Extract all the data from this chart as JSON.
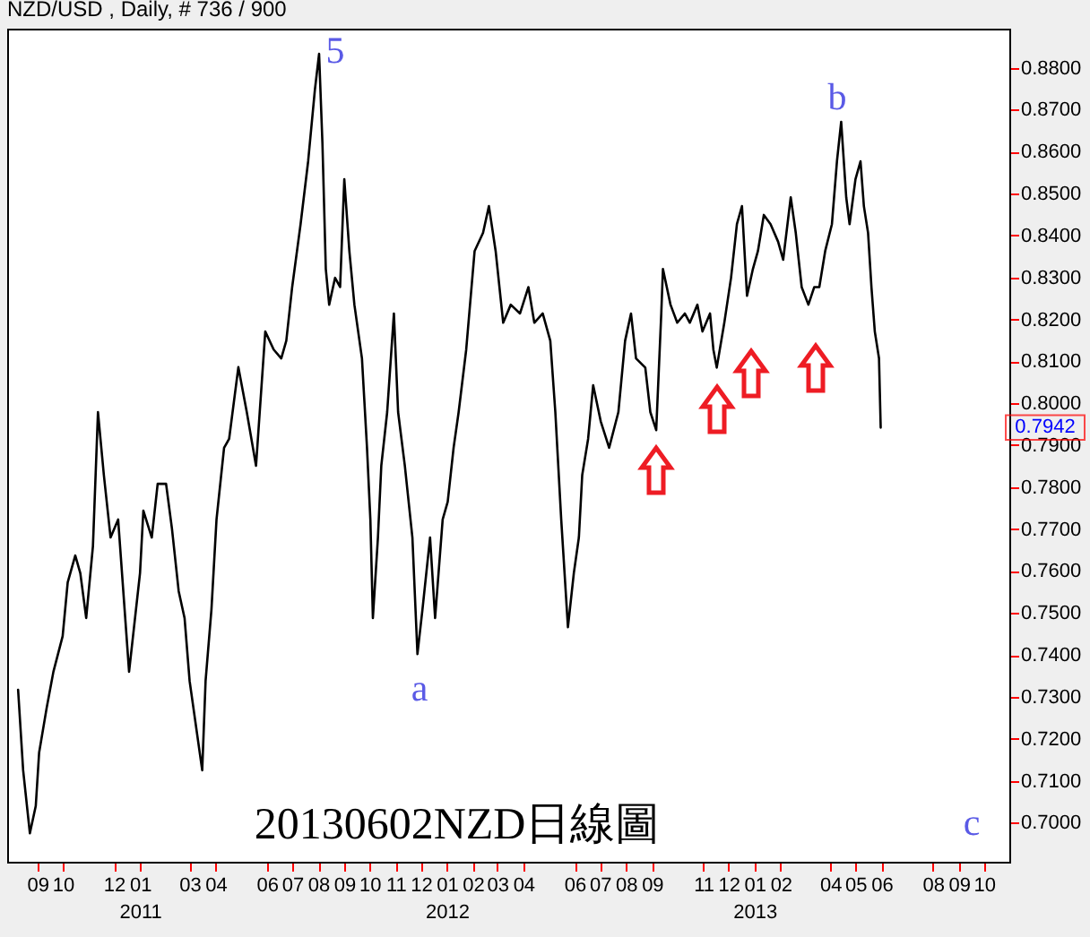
{
  "chart_data": {
    "type": "line",
    "title": "NZD/USD , Daily, # 736 / 900",
    "annotations": [
      "5",
      "b",
      "a",
      "20130602NZD日線圖",
      "c",
      {
        "text": "0.7942",
        "y": 0.7942
      }
    ],
    "x": [
      "2010-08-09",
      "2010-08-15",
      "2010-08-23",
      "2010-08-30",
      "2010-09-03",
      "2010-09-12",
      "2010-09-20",
      "2010-10-01",
      "2010-10-07",
      "2010-10-16",
      "2010-10-22",
      "2010-10-29",
      "2010-11-06",
      "2010-11-12",
      "2010-11-19",
      "2010-11-27",
      "2010-12-06",
      "2010-12-19",
      "2011-01-01",
      "2011-01-05",
      "2011-01-15",
      "2011-01-22",
      "2011-02-01",
      "2011-02-08",
      "2011-02-16",
      "2011-02-23",
      "2011-03-01",
      "2011-03-16",
      "2011-03-20",
      "2011-03-27",
      "2011-04-02",
      "2011-04-11",
      "2011-04-17",
      "2011-04-28",
      "2011-05-08",
      "2011-05-19",
      "2011-05-30",
      "2011-06-09",
      "2011-06-18",
      "2011-06-24",
      "2011-07-01",
      "2011-07-11",
      "2011-07-20",
      "2011-07-28",
      "2011-08-02",
      "2011-08-06",
      "2011-08-10",
      "2011-08-14",
      "2011-08-21",
      "2011-08-27",
      "2011-09-01",
      "2011-09-07",
      "2011-09-13",
      "2011-09-22",
      "2011-09-28",
      "2011-10-02",
      "2011-10-05",
      "2011-10-11",
      "2011-10-15",
      "2011-10-22",
      "2011-10-30",
      "2011-11-04",
      "2011-11-12",
      "2011-11-21",
      "2011-11-27",
      "2011-12-03",
      "2011-12-12",
      "2011-12-18",
      "2011-12-27",
      "2012-01-02",
      "2012-01-09",
      "2012-01-15",
      "2012-01-24",
      "2012-02-03",
      "2012-02-13",
      "2012-02-20",
      "2012-02-28",
      "2012-03-08",
      "2012-03-17",
      "2012-03-28",
      "2012-04-07",
      "2012-04-14",
      "2012-04-24",
      "2012-05-03",
      "2012-05-09",
      "2012-05-16",
      "2012-05-18",
      "2012-05-24",
      "2012-05-31",
      "2012-06-06",
      "2012-06-10",
      "2012-06-17",
      "2012-06-23",
      "2012-07-02",
      "2012-07-12",
      "2012-07-23",
      "2012-07-31",
      "2012-08-07",
      "2012-08-13",
      "2012-08-24",
      "2012-08-30",
      "2012-09-06",
      "2012-09-12",
      "2012-09-14",
      "2012-09-23",
      "2012-10-01",
      "2012-10-10",
      "2012-10-16",
      "2012-10-25",
      "2012-10-31",
      "2012-11-09",
      "2012-11-13",
      "2012-11-17",
      "2012-11-26",
      "2012-12-04",
      "2012-12-11",
      "2012-12-17",
      "2012-12-23",
      "2012-12-30",
      "2013-01-05",
      "2013-01-12",
      "2013-01-20",
      "2013-01-29",
      "2013-02-04",
      "2013-02-13",
      "2013-02-19",
      "2013-02-26",
      "2013-03-06",
      "2013-03-13",
      "2013-03-19",
      "2013-03-26",
      "2013-04-03",
      "2013-04-09",
      "2013-04-14",
      "2013-04-20",
      "2013-04-24",
      "2013-05-01",
      "2013-05-07",
      "2013-05-11",
      "2013-05-16",
      "2013-05-20",
      "2013-05-24",
      "2013-05-29",
      "2013-05-31"
    ],
    "series": [
      {
        "color": "#000000",
        "values": [
          0.7317,
          0.7125,
          0.6975,
          0.704,
          0.7167,
          0.7274,
          0.736,
          0.7445,
          0.7573,
          0.7637,
          0.7595,
          0.7488,
          0.7659,
          0.7979,
          0.7829,
          0.768,
          0.7723,
          0.736,
          0.7595,
          0.7744,
          0.768,
          0.7808,
          0.7808,
          0.7701,
          0.7552,
          0.7488,
          0.7338,
          0.7125,
          0.7338,
          0.7509,
          0.7723,
          0.7894,
          0.7915,
          0.8086,
          0.7979,
          0.7851,
          0.8171,
          0.8128,
          0.8107,
          0.8149,
          0.8277,
          0.8427,
          0.8577,
          0.8747,
          0.8833,
          0.8619,
          0.832,
          0.8235,
          0.8299,
          0.8277,
          0.8534,
          0.8363,
          0.8235,
          0.8107,
          0.7894,
          0.7723,
          0.7488,
          0.768,
          0.7851,
          0.7979,
          0.8214,
          0.7979,
          0.7851,
          0.768,
          0.7402,
          0.7509,
          0.768,
          0.7488,
          0.7723,
          0.7765,
          0.7894,
          0.7979,
          0.8128,
          0.8363,
          0.8406,
          0.847,
          0.8363,
          0.8192,
          0.8235,
          0.8214,
          0.8277,
          0.8192,
          0.8214,
          0.8149,
          0.7979,
          0.7723,
          0.7659,
          0.7466,
          0.7595,
          0.768,
          0.7829,
          0.7915,
          0.8043,
          0.7957,
          0.7894,
          0.7979,
          0.8149,
          0.8214,
          0.8107,
          0.8085,
          0.7979,
          0.7936,
          0.8214,
          0.832,
          0.8235,
          0.8192,
          0.8214,
          0.8192,
          0.8235,
          0.8171,
          0.8214,
          0.8128,
          0.8085,
          0.8192,
          0.8299,
          0.8427,
          0.847,
          0.8256,
          0.832,
          0.8363,
          0.8449,
          0.8427,
          0.8385,
          0.8342,
          0.8491,
          0.8406,
          0.8277,
          0.8235,
          0.8277,
          0.8277,
          0.8363,
          0.8427,
          0.8577,
          0.8671,
          0.8491,
          0.8427,
          0.8534,
          0.8577,
          0.847,
          0.8406,
          0.8277,
          0.8171,
          0.8107,
          0.7942
        ]
      }
    ],
    "xlim": [
      "2010-07-27",
      "2013-10-31"
    ],
    "ylim": [
      0.6907,
      0.8893
    ],
    "xticks": [
      {
        "value": "2010-09",
        "label": "09"
      },
      {
        "value": "2010-10",
        "label": "10"
      },
      {
        "value": "2010-12",
        "label": "12"
      },
      {
        "value": "2011-01",
        "label": "01\n2011"
      },
      {
        "value": "2011-03",
        "label": "03"
      },
      {
        "value": "2011-04",
        "label": "04"
      },
      {
        "value": "2011-06",
        "label": "06"
      },
      {
        "value": "2011-07",
        "label": "07"
      },
      {
        "value": "2011-08",
        "label": "08"
      },
      {
        "value": "2011-09",
        "label": "09"
      },
      {
        "value": "2011-10",
        "label": "10"
      },
      {
        "value": "2011-11",
        "label": "11"
      },
      {
        "value": "2011-12",
        "label": "12"
      },
      {
        "value": "2012-01",
        "label": "01\n2012"
      },
      {
        "value": "2012-02",
        "label": "02"
      },
      {
        "value": "2012-03",
        "label": "03"
      },
      {
        "value": "2012-04",
        "label": "04"
      },
      {
        "value": "2012-06",
        "label": "06"
      },
      {
        "value": "2012-07",
        "label": "07"
      },
      {
        "value": "2012-08",
        "label": "08"
      },
      {
        "value": "2012-09",
        "label": "09"
      },
      {
        "value": "2012-11",
        "label": "11"
      },
      {
        "value": "2012-12",
        "label": "12"
      },
      {
        "value": "2013-01",
        "label": "01\n2013"
      },
      {
        "value": "2013-02",
        "label": "02"
      },
      {
        "value": "2013-04",
        "label": "04"
      },
      {
        "value": "2013-05",
        "label": "05"
      },
      {
        "value": "2013-06",
        "label": "06"
      },
      {
        "value": "2013-08",
        "label": "08"
      },
      {
        "value": "2013-09",
        "label": "09"
      },
      {
        "value": "2013-10",
        "label": "10"
      }
    ],
    "yticks": [
      {
        "value": 0.7,
        "label": "0.7000"
      },
      {
        "value": 0.71,
        "label": "0.7100"
      },
      {
        "value": 0.72,
        "label": "0.7200"
      },
      {
        "value": 0.73,
        "label": "0.7300"
      },
      {
        "value": 0.74,
        "label": "0.7400"
      },
      {
        "value": 0.75,
        "label": "0.7500"
      },
      {
        "value": 0.76,
        "label": "0.7600"
      },
      {
        "value": 0.77,
        "label": "0.7700"
      },
      {
        "value": 0.78,
        "label": "0.7800"
      },
      {
        "value": 0.79,
        "label": "0.7900"
      },
      {
        "value": 0.8,
        "label": "0.8000"
      },
      {
        "value": 0.81,
        "label": "0.8100"
      },
      {
        "value": 0.82,
        "label": "0.8200"
      },
      {
        "value": 0.83,
        "label": "0.8300"
      },
      {
        "value": 0.84,
        "label": "0.8400"
      },
      {
        "value": 0.85,
        "label": "0.8500"
      },
      {
        "value": 0.86,
        "label": "0.8600"
      },
      {
        "value": 0.87,
        "label": "0.8700"
      },
      {
        "value": 0.88,
        "label": "0.8800"
      }
    ]
  }
}
